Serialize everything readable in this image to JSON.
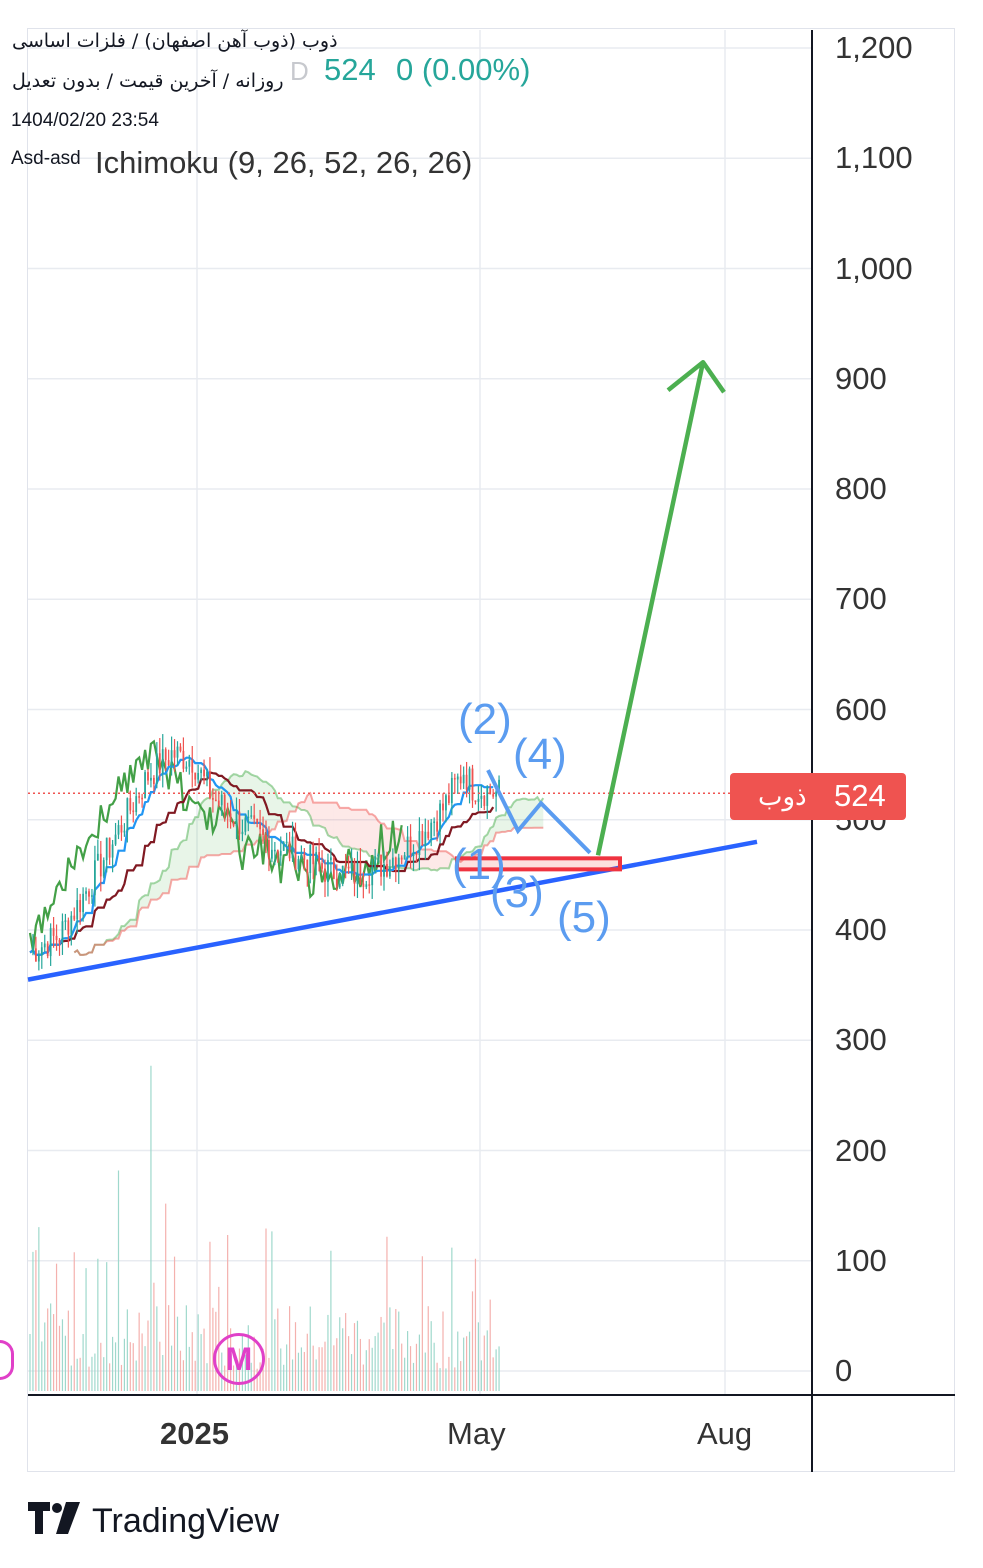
{
  "header": {
    "symbol_line": "ذوب (ذوب آهن اصفهان) / فلزات اساسی",
    "settings_line": "روزانه / آخرین قیمت / بدون تعدیل",
    "datetime": "1404/02/20 23:54",
    "author": "Asd-asd",
    "ghost_text": "D",
    "last_price": "524",
    "change": "0 (0.00%)",
    "indicator": "Ichimoku (9, 26, 52, 26, 26)"
  },
  "badge": {
    "name": "ذوب",
    "price": "524"
  },
  "wave_labels": [
    "(1)",
    "(2)",
    "(3)",
    "(4)",
    "(5)"
  ],
  "marker": "M",
  "branding": {
    "name": "TradingView"
  },
  "colors": {
    "up": "#26a69a",
    "down": "#ef5350",
    "tenkan": "#2196f3",
    "kijun": "#801922",
    "chikou": "#43a047",
    "trendline": "#2962ff",
    "projection": "#4caf50",
    "wave": "#5b9cf0",
    "marker": "#e040c8"
  },
  "chart_data": {
    "type": "candlestick",
    "y_ticks": [
      "1,200",
      "1,100",
      "1,000",
      "900",
      "800",
      "700",
      "600",
      "500",
      "400",
      "300",
      "200",
      "100",
      "0"
    ],
    "x_ticks": [
      {
        "label": "2025",
        "bold": true
      },
      {
        "label": "May",
        "bold": false
      },
      {
        "label": "Aug",
        "bold": false
      }
    ],
    "ylim": [
      0,
      1200
    ],
    "last_price": 524,
    "price_range_approx": [
      370,
      595
    ],
    "support_line": {
      "from": 355,
      "to": 480
    },
    "support_zone": {
      "low": 455,
      "high": 465
    },
    "wave_path": [
      545,
      490,
      515,
      470
    ],
    "projection_target": 915,
    "ichimoku": {
      "tenkan": 9,
      "kijun": 26,
      "senkou_b": 52,
      "displacement": 26
    }
  }
}
